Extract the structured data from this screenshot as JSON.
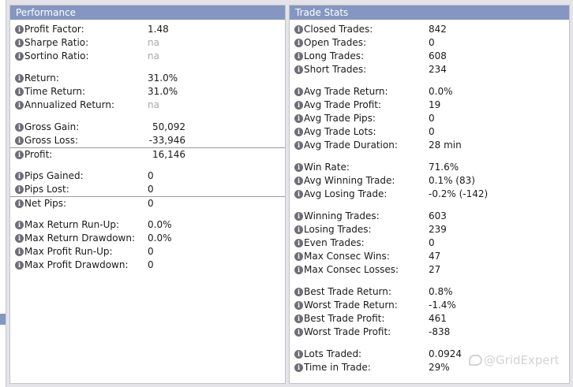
{
  "performance": {
    "title": "Performance",
    "groups": [
      [
        {
          "label": "Profit Factor:",
          "value": "1.48"
        },
        {
          "label": "Sharpe Ratio:",
          "value": "na",
          "na": true
        },
        {
          "label": "Sortino Ratio:",
          "value": "na",
          "na": true
        }
      ],
      [
        {
          "label": "Return:",
          "value": "31.0%"
        },
        {
          "label": "Time Return:",
          "value": "31.0%"
        },
        {
          "label": "Annualized Return:",
          "value": "na",
          "na": true
        }
      ],
      [
        {
          "label": "Gross Gain:",
          "value": "50,092",
          "num": true
        },
        {
          "label": "Gross Loss:",
          "value": "-33,946",
          "num": true
        },
        {
          "label": "Profit:",
          "value": "16,146",
          "num": true,
          "sep": true
        }
      ],
      [
        {
          "label": "Pips Gained:",
          "value": "0"
        },
        {
          "label": "Pips Lost:",
          "value": "0"
        },
        {
          "label": "Net Pips:",
          "value": "0",
          "sep": true
        }
      ],
      [
        {
          "label": "Max Return Run-Up:",
          "value": "0.0%"
        },
        {
          "label": "Max Return Drawdown:",
          "value": "0.0%"
        },
        {
          "label": "Max Profit Run-Up:",
          "value": "0"
        },
        {
          "label": "Max Profit Drawdown:",
          "value": "0"
        }
      ]
    ]
  },
  "trade_stats": {
    "title": "Trade Stats",
    "groups": [
      [
        {
          "label": "Closed Trades:",
          "value": "842"
        },
        {
          "label": "Open Trades:",
          "value": "0"
        },
        {
          "label": "Long Trades:",
          "value": "608"
        },
        {
          "label": "Short Trades:",
          "value": "234"
        }
      ],
      [
        {
          "label": "Avg Trade Return:",
          "value": "0.0%"
        },
        {
          "label": "Avg Trade Profit:",
          "value": "19"
        },
        {
          "label": "Avg Trade Pips:",
          "value": "0"
        },
        {
          "label": "Avg Trade Lots:",
          "value": "0"
        },
        {
          "label": "Avg Trade Duration:",
          "value": "28 min"
        }
      ],
      [
        {
          "label": "Win Rate:",
          "value": "71.6%"
        },
        {
          "label": "Avg Winning Trade:",
          "value": "0.1% (83)"
        },
        {
          "label": "Avg Losing Trade:",
          "value": "-0.2% (-142)"
        }
      ],
      [
        {
          "label": "Winning Trades:",
          "value": "603"
        },
        {
          "label": "Losing Trades:",
          "value": "239"
        },
        {
          "label": "Even Trades:",
          "value": "0"
        },
        {
          "label": "Max Consec Wins:",
          "value": "47"
        },
        {
          "label": "Max Consec Losses:",
          "value": "27"
        }
      ],
      [
        {
          "label": "Best Trade Return:",
          "value": "0.8%"
        },
        {
          "label": "Worst Trade Return:",
          "value": "-1.4%"
        },
        {
          "label": "Best Trade Profit:",
          "value": "461"
        },
        {
          "label": "Worst Trade Profit:",
          "value": "-838"
        }
      ],
      [
        {
          "label": "Lots Traded:",
          "value": "0.0924"
        },
        {
          "label": "Time in Trade:",
          "value": "29%"
        }
      ]
    ]
  },
  "icons": {
    "info": "info-icon",
    "info_glyph": "i"
  },
  "watermark": {
    "text": "@GridExpert"
  },
  "colors": {
    "header": "#8596c2",
    "na": "#a8a8a8"
  }
}
